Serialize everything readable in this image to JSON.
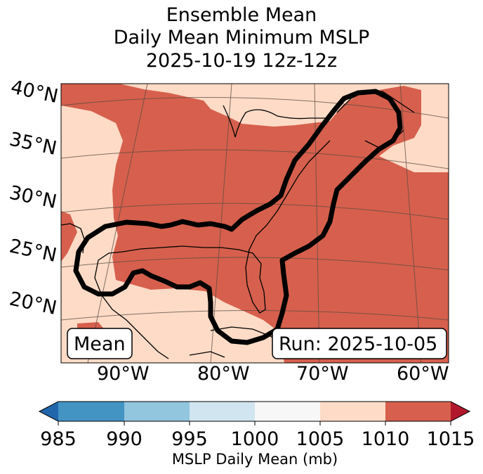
{
  "title": {
    "line1": "Ensemble Mean",
    "line2": "Daily Mean Minimum MSLP",
    "line3": "2025-10-19 12z-12z"
  },
  "map": {
    "lat_labels": [
      "40°N",
      "35°N",
      "30°N",
      "25°N",
      "20°N"
    ],
    "lon_labels": [
      "90°W",
      "80°W",
      "70°W",
      "60°W"
    ],
    "mean_box": "Mean",
    "run_box": "Run: 2025-10-05",
    "colors": {
      "shade_1005_1010": "#fddbc7",
      "shade_1010_1015": "#d6604d",
      "contour": "#000000"
    }
  },
  "colorbar": {
    "label": "MSLP Daily Mean (mb)",
    "ticks": [
      "985",
      "990",
      "995",
      "1000",
      "1005",
      "1010",
      "1015"
    ],
    "colors": [
      "#2166ac",
      "#4393c3",
      "#92c5de",
      "#d1e5f0",
      "#f7f7f7",
      "#fddbc7",
      "#d6604d",
      "#b2182b"
    ]
  }
}
